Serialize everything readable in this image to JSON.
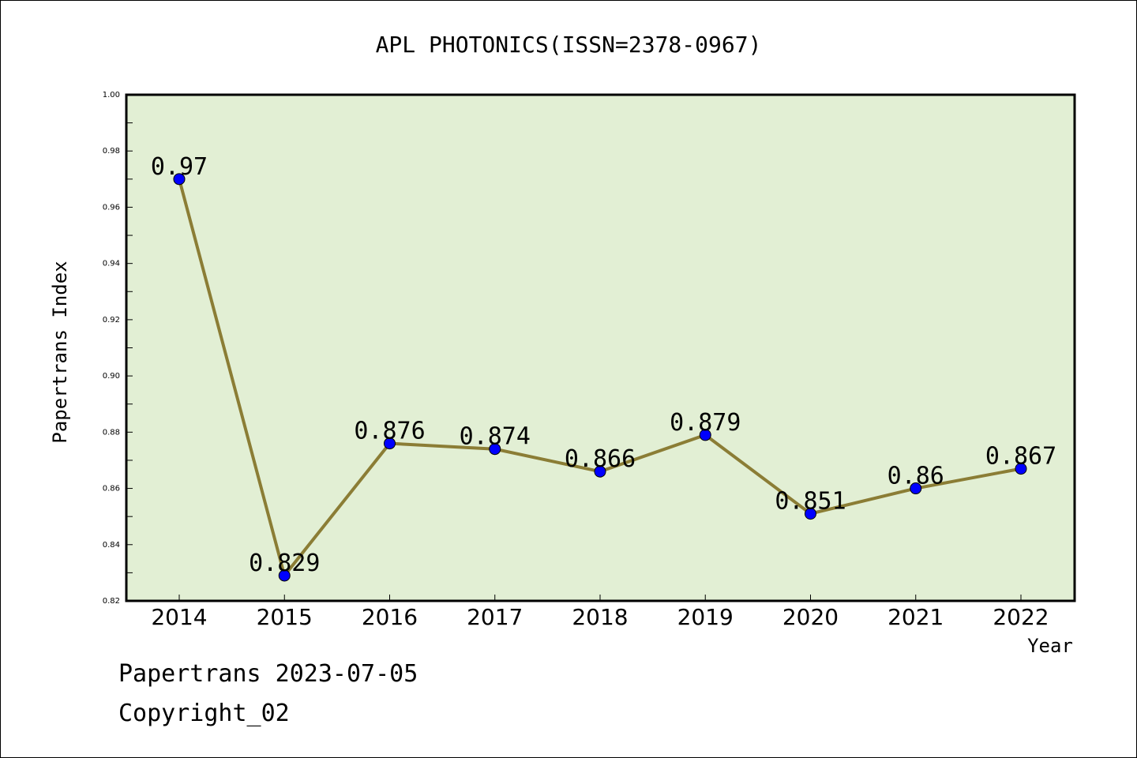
{
  "chart_data": {
    "type": "line",
    "title": "APL PHOTONICS(ISSN=2378-0967)",
    "xlabel": "Year",
    "ylabel": "Papertrans Index",
    "categories": [
      "2014",
      "2015",
      "2016",
      "2017",
      "2018",
      "2019",
      "2020",
      "2021",
      "2022"
    ],
    "series": [
      {
        "values": [
          0.97,
          0.829,
          0.876,
          0.874,
          0.866,
          0.879,
          0.851,
          0.86,
          0.867
        ],
        "labels": [
          "0.97",
          "0.829",
          "0.876",
          "0.874",
          "0.866",
          "0.879",
          "0.851",
          "0.86",
          "0.867"
        ]
      }
    ],
    "ylim": [
      0.82,
      1.0
    ],
    "yticks": [
      "0.82",
      "0.84",
      "0.86",
      "0.88",
      "0.90",
      "0.92",
      "0.94",
      "0.96",
      "0.98",
      "1.00"
    ],
    "grid": false,
    "legend": "none",
    "colors": {
      "plot_background": "#e2efd4",
      "line": "#8b7d35",
      "marker": "#0000ff"
    }
  },
  "footer": {
    "line1": "Papertrans 2023-07-05",
    "line2": "Copyright_02"
  }
}
